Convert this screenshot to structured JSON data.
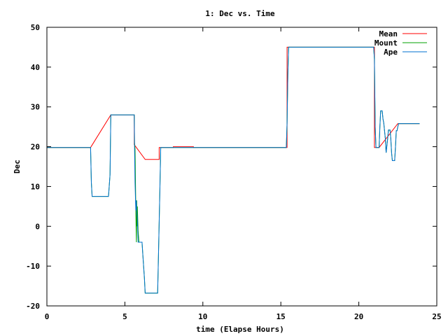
{
  "chart_data": {
    "type": "line",
    "title": "1: Dec vs. Time",
    "xlabel": "time (Elapse Hours)",
    "ylabel": "Dec",
    "xlim": [
      0,
      25
    ],
    "ylim": [
      -20,
      50
    ],
    "xticks": [
      0,
      5,
      10,
      15,
      20,
      25
    ],
    "yticks": [
      -20,
      -10,
      0,
      10,
      20,
      30,
      40,
      50
    ],
    "grid": false,
    "legend_position": "top-right",
    "series": [
      {
        "name": "Mean",
        "color": "#ff0000",
        "points": [
          [
            0,
            19.8
          ],
          [
            2.8,
            19.8
          ],
          [
            2.8,
            19.8
          ],
          [
            4.1,
            28
          ],
          [
            5.6,
            28
          ],
          [
            5.6,
            20.5
          ],
          [
            6.3,
            16.8
          ],
          [
            7.2,
            16.8
          ],
          [
            7.2,
            19.8
          ],
          [
            8.1,
            19.8
          ],
          [
            8.1,
            20
          ],
          [
            9.4,
            20
          ],
          [
            9.4,
            19.8
          ],
          [
            15.4,
            19.8
          ],
          [
            15.4,
            45
          ],
          [
            21,
            45
          ],
          [
            21,
            19.8
          ],
          [
            21.3,
            19.8
          ],
          [
            22.5,
            25.8
          ],
          [
            23.9,
            25.8
          ]
        ]
      },
      {
        "name": "Mount",
        "color": "#00a000",
        "points": [
          [
            0,
            19.8
          ],
          [
            2.8,
            19.8
          ],
          [
            2.85,
            11
          ],
          [
            2.9,
            7.5
          ],
          [
            3.95,
            7.5
          ],
          [
            4.05,
            13
          ],
          [
            4.1,
            28
          ],
          [
            5.6,
            28
          ],
          [
            5.62,
            21
          ],
          [
            5.65,
            19.5
          ],
          [
            5.7,
            5
          ],
          [
            5.72,
            0
          ],
          [
            5.74,
            -4
          ],
          [
            5.76,
            6.5
          ],
          [
            5.78,
            0
          ],
          [
            5.8,
            5
          ],
          [
            5.85,
            -1
          ],
          [
            5.9,
            -4
          ],
          [
            6.1,
            -4
          ],
          [
            6.15,
            -7
          ],
          [
            6.25,
            -13
          ],
          [
            6.3,
            -16.8
          ],
          [
            7.1,
            -16.8
          ],
          [
            7.15,
            -8
          ],
          [
            7.25,
            10
          ],
          [
            7.3,
            19.8
          ],
          [
            15.35,
            19.8
          ],
          [
            15.4,
            26
          ],
          [
            15.45,
            38
          ],
          [
            15.5,
            45
          ],
          [
            20.95,
            45
          ],
          [
            21,
            42
          ],
          [
            21.05,
            25
          ],
          [
            21.1,
            19.8
          ],
          [
            21.3,
            19.8
          ],
          [
            21.35,
            25
          ],
          [
            21.4,
            29
          ],
          [
            21.5,
            29
          ],
          [
            21.55,
            27
          ],
          [
            21.6,
            26
          ],
          [
            21.7,
            22
          ],
          [
            21.75,
            18.5
          ],
          [
            21.85,
            22
          ],
          [
            21.9,
            24.2
          ],
          [
            22,
            24.2
          ],
          [
            22.05,
            22
          ],
          [
            22.1,
            18.5
          ],
          [
            22.15,
            16.5
          ],
          [
            22.3,
            16.5
          ],
          [
            22.35,
            20
          ],
          [
            22.4,
            24
          ],
          [
            22.45,
            24
          ],
          [
            22.5,
            25
          ],
          [
            22.55,
            25.8
          ],
          [
            23.9,
            25.8
          ]
        ]
      },
      {
        "name": "Ape",
        "color": "#0070d0",
        "points": [
          [
            0,
            19.8
          ],
          [
            2.8,
            19.8
          ],
          [
            2.85,
            11
          ],
          [
            2.9,
            7.5
          ],
          [
            3.95,
            7.5
          ],
          [
            4.05,
            13
          ],
          [
            4.1,
            28
          ],
          [
            5.6,
            28
          ],
          [
            5.62,
            19.8
          ],
          [
            5.65,
            11
          ],
          [
            5.7,
            4
          ],
          [
            5.73,
            6.5
          ],
          [
            5.76,
            3.5
          ],
          [
            5.8,
            2
          ],
          [
            5.85,
            -4
          ],
          [
            6.1,
            -4
          ],
          [
            6.15,
            -7
          ],
          [
            6.25,
            -13
          ],
          [
            6.3,
            -16.8
          ],
          [
            7.1,
            -16.8
          ],
          [
            7.15,
            -8
          ],
          [
            7.25,
            10
          ],
          [
            7.3,
            19.8
          ],
          [
            15.35,
            19.8
          ],
          [
            15.4,
            26
          ],
          [
            15.45,
            38
          ],
          [
            15.5,
            45
          ],
          [
            20.95,
            45
          ],
          [
            21,
            42
          ],
          [
            21.05,
            25
          ],
          [
            21.1,
            19.8
          ],
          [
            21.3,
            19.8
          ],
          [
            21.35,
            25
          ],
          [
            21.4,
            29
          ],
          [
            21.5,
            29
          ],
          [
            21.55,
            27
          ],
          [
            21.6,
            26
          ],
          [
            21.7,
            22
          ],
          [
            21.75,
            18.5
          ],
          [
            21.85,
            22
          ],
          [
            21.9,
            24.2
          ],
          [
            22,
            24.2
          ],
          [
            22.05,
            22
          ],
          [
            22.1,
            18.5
          ],
          [
            22.15,
            16.5
          ],
          [
            22.3,
            16.5
          ],
          [
            22.35,
            20
          ],
          [
            22.4,
            24
          ],
          [
            22.45,
            24
          ],
          [
            22.5,
            25
          ],
          [
            22.55,
            25.8
          ],
          [
            23.9,
            25.8
          ]
        ]
      }
    ]
  }
}
